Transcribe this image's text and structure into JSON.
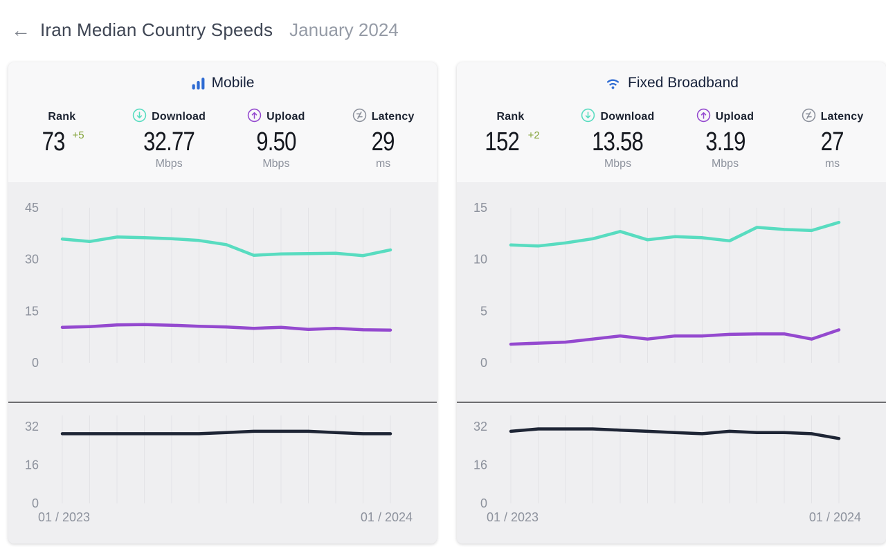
{
  "header": {
    "back_arrow": "←",
    "title": "Iran Median Country Speeds",
    "period": "January 2024"
  },
  "colors": {
    "download_line": "#58dcc0",
    "upload_line": "#9449cf",
    "latency_line": "#1e2535",
    "accent_blue": "#2e6bd3",
    "delta_green": "#84a43b",
    "tick_text": "#8d929d",
    "gridline": "#e3e3e6"
  },
  "panels": [
    {
      "title": "Mobile",
      "stats": {
        "rank": {
          "label": "Rank",
          "value": "73",
          "delta": "+5"
        },
        "download": {
          "label": "Download",
          "value": "32.77",
          "unit": "Mbps"
        },
        "upload": {
          "label": "Upload",
          "value": "9.50",
          "unit": "Mbps"
        },
        "latency": {
          "label": "Latency",
          "value": "29",
          "unit": "ms"
        }
      }
    },
    {
      "title": "Fixed Broadband",
      "stats": {
        "rank": {
          "label": "Rank",
          "value": "152",
          "delta": "+2"
        },
        "download": {
          "label": "Download",
          "value": "13.58",
          "unit": "Mbps"
        },
        "upload": {
          "label": "Upload",
          "value": "3.19",
          "unit": "Mbps"
        },
        "latency": {
          "label": "Latency",
          "value": "27",
          "unit": "ms"
        }
      }
    }
  ],
  "chart_data": [
    {
      "type": "line",
      "title": "Mobile median download & upload speeds, monthly",
      "x_tick_labels": [
        "01 / 2023",
        "01 / 2024"
      ],
      "ylabel": "Mbps",
      "ylim": [
        0,
        45
      ],
      "yticks": [
        45,
        30,
        15,
        0
      ],
      "grid": "vertical monthly gridlines",
      "legend": "none (colors match Download/Upload stat icons)",
      "series": [
        {
          "name": "Download",
          "color": "#58dcc0",
          "values": [
            35.9,
            35.2,
            36.5,
            36.3,
            36.0,
            35.5,
            34.3,
            31.2,
            31.6,
            31.7,
            31.8,
            31.1,
            32.77
          ]
        },
        {
          "name": "Upload",
          "color": "#9449cf",
          "values": [
            10.3,
            10.5,
            11.0,
            11.1,
            10.9,
            10.6,
            10.4,
            10.0,
            10.3,
            9.7,
            10.0,
            9.6,
            9.5
          ]
        }
      ]
    },
    {
      "type": "line",
      "title": "Mobile median latency, monthly",
      "x_tick_labels": [
        "01 / 2023",
        "01 / 2024"
      ],
      "ylabel": "ms",
      "ylim": [
        0,
        32
      ],
      "yticks": [
        32,
        16,
        0
      ],
      "grid": "vertical monthly gridlines",
      "series": [
        {
          "name": "Latency",
          "color": "#1e2535",
          "values": [
            29,
            29,
            29,
            29,
            29,
            29,
            29.5,
            30,
            30,
            30,
            29.5,
            29,
            29
          ]
        }
      ]
    },
    {
      "type": "line",
      "title": "Fixed broadband median download & upload speeds, monthly",
      "x_tick_labels": [
        "01 / 2023",
        "01 / 2024"
      ],
      "ylabel": "Mbps",
      "ylim": [
        0,
        15
      ],
      "yticks": [
        15,
        10,
        5,
        0
      ],
      "grid": "vertical monthly gridlines",
      "series": [
        {
          "name": "Download",
          "color": "#58dcc0",
          "values": [
            11.4,
            11.3,
            11.6,
            12.0,
            12.7,
            11.9,
            12.2,
            12.1,
            11.8,
            13.1,
            12.9,
            12.8,
            13.58
          ]
        },
        {
          "name": "Upload",
          "color": "#9449cf",
          "values": [
            1.8,
            1.9,
            2.0,
            2.3,
            2.6,
            2.3,
            2.6,
            2.6,
            2.75,
            2.8,
            2.8,
            2.3,
            3.19
          ]
        }
      ]
    },
    {
      "type": "line",
      "title": "Fixed broadband median latency, monthly",
      "x_tick_labels": [
        "01 / 2023",
        "01 / 2024"
      ],
      "ylabel": "ms",
      "ylim": [
        0,
        32
      ],
      "yticks": [
        32,
        16,
        0
      ],
      "grid": "vertical monthly gridlines",
      "series": [
        {
          "name": "Latency",
          "color": "#1e2535",
          "values": [
            30,
            31,
            31,
            31,
            30.5,
            30,
            29.5,
            29,
            30,
            29.5,
            29.5,
            29,
            27
          ]
        }
      ]
    }
  ]
}
